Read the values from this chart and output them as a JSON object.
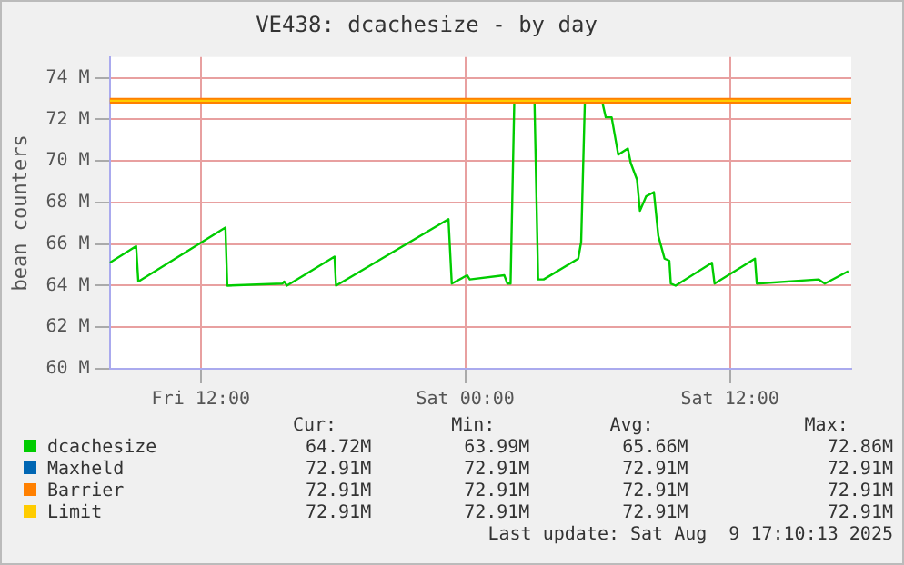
{
  "chart_data": {
    "type": "line",
    "title": "VE438: dcachesize - by day",
    "ylabel": "bean counters",
    "xlim": [
      "2025-08-08T07:52",
      "2025-08-09T17:30"
    ],
    "xticks": [
      {
        "value": "2025-08-08T12:00",
        "label": "Fri 12:00"
      },
      {
        "value": "2025-08-09T00:00",
        "label": "Sat 00:00"
      },
      {
        "value": "2025-08-09T12:00",
        "label": "Sat 12:00"
      }
    ],
    "ylim": [
      60,
      75
    ],
    "yticks": [
      {
        "value": 60,
        "label": "60 M"
      },
      {
        "value": 62,
        "label": "62 M"
      },
      {
        "value": 64,
        "label": "64 M"
      },
      {
        "value": 66,
        "label": "66 M"
      },
      {
        "value": 68,
        "label": "68 M"
      },
      {
        "value": 70,
        "label": "70 M"
      },
      {
        "value": 72,
        "label": "72 M"
      },
      {
        "value": 74,
        "label": "74 M"
      }
    ],
    "grid": true,
    "legend": "bottom",
    "marker": "none",
    "line_style": "solid",
    "series": [
      {
        "name": "dcachesize",
        "color": "#00cc00",
        "x": [
          "2025-08-08T07:52",
          "2025-08-08T09:04",
          "2025-08-08T09:10",
          "2025-08-08T13:07",
          "2025-08-08T13:12",
          "2025-08-08T15:42",
          "2025-08-08T15:47",
          "2025-08-08T15:54",
          "2025-08-08T18:04",
          "2025-08-08T18:08",
          "2025-08-08T23:14",
          "2025-08-08T23:23",
          "2025-08-09T00:05",
          "2025-08-09T00:12",
          "2025-08-09T01:46",
          "2025-08-09T01:54",
          "2025-08-09T02:03",
          "2025-08-09T02:13",
          "2025-08-09T03:08",
          "2025-08-09T03:18",
          "2025-08-09T03:33",
          "2025-08-09T05:07",
          "2025-08-09T05:15",
          "2025-08-09T05:25",
          "2025-08-09T06:13",
          "2025-08-09T06:22",
          "2025-08-09T06:38",
          "2025-08-09T06:56",
          "2025-08-09T07:22",
          "2025-08-09T07:30",
          "2025-08-09T07:47",
          "2025-08-09T07:55",
          "2025-08-09T08:12",
          "2025-08-09T08:33",
          "2025-08-09T08:45",
          "2025-08-09T09:02",
          "2025-08-09T09:15",
          "2025-08-09T09:19",
          "2025-08-09T09:32",
          "2025-08-09T11:11",
          "2025-08-09T11:18",
          "2025-08-09T13:08",
          "2025-08-09T13:13",
          "2025-08-09T16:01",
          "2025-08-09T16:18",
          "2025-08-09T17:22"
        ],
        "values": [
          65.1,
          65.9,
          64.2,
          66.8,
          64.0,
          64.1,
          64.2,
          64.0,
          65.4,
          64.0,
          67.2,
          64.1,
          64.5,
          64.3,
          64.5,
          64.1,
          64.1,
          72.8,
          72.9,
          64.3,
          64.3,
          65.3,
          66.1,
          72.8,
          72.8,
          72.1,
          72.1,
          70.3,
          70.6,
          69.9,
          69.1,
          67.6,
          68.3,
          68.5,
          66.4,
          65.3,
          65.2,
          64.1,
          64.0,
          65.1,
          64.1,
          65.3,
          64.1,
          64.3,
          64.1,
          64.7
        ]
      },
      {
        "name": "Maxheld",
        "color": "#0066b3"
      },
      {
        "name": "Barrier",
        "color": "#ff8000",
        "x": [
          "2025-08-08T07:52",
          "2025-08-09T17:30"
        ],
        "values": [
          72.9,
          72.9
        ]
      },
      {
        "name": "Limit",
        "color": "#ffcc00",
        "x": [
          "2025-08-08T07:52",
          "2025-08-09T17:30"
        ],
        "values": [
          72.9,
          72.9
        ]
      }
    ],
    "annotations": [
      "Cur:",
      "Min:",
      "Avg:",
      "Max:",
      "64.72M",
      "63.99M",
      "65.66M",
      "72.86M",
      "72.91M",
      "72.91M",
      "72.91M",
      "72.91M",
      "72.91M",
      "72.91M",
      "72.91M",
      "72.91M",
      "72.91M",
      "72.91M",
      "72.91M",
      "72.91M",
      "Last update: Sat Aug  9 17:10:13 2025"
    ]
  }
}
